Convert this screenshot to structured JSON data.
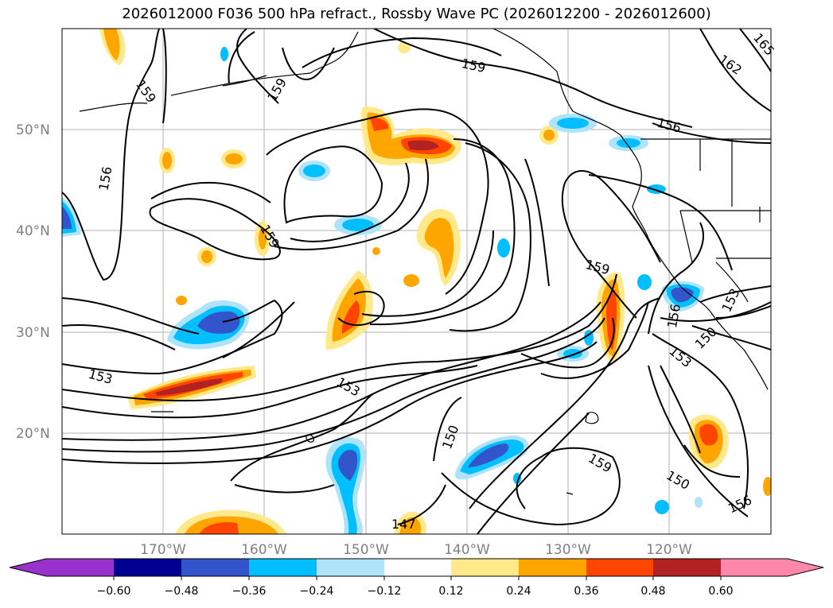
{
  "title": "2026012000 F036 500 hPa refract., Rossby Wave PC (2026012200 - 2026012600)",
  "lat_labels": [
    "50°N",
    "40°N",
    "30°N",
    "20°N"
  ],
  "lon_labels": [
    "170°W",
    "160°W",
    "150°W",
    "140°W",
    "130°W",
    "120°W"
  ],
  "colorbar": {
    "ticks": [
      "−0.60",
      "−0.48",
      "−0.36",
      "−0.24",
      "−0.12",
      "0.12",
      "0.24",
      "0.36",
      "0.48",
      "0.60"
    ],
    "colors": [
      "#9932cc",
      "#000090",
      "#3355cc",
      "#00bfff",
      "#aee3fa",
      "#ffffff",
      "#ffe98a",
      "#ffa500",
      "#ff4500",
      "#b22222",
      "#ff88aa"
    ]
  },
  "contour_labels": [
    "159",
    "159",
    "159",
    "162",
    "165",
    "156",
    "156",
    "159",
    "159",
    "156",
    "153",
    "153",
    "153",
    "150",
    "150",
    "159",
    "150",
    "153",
    "147",
    "156"
  ]
}
